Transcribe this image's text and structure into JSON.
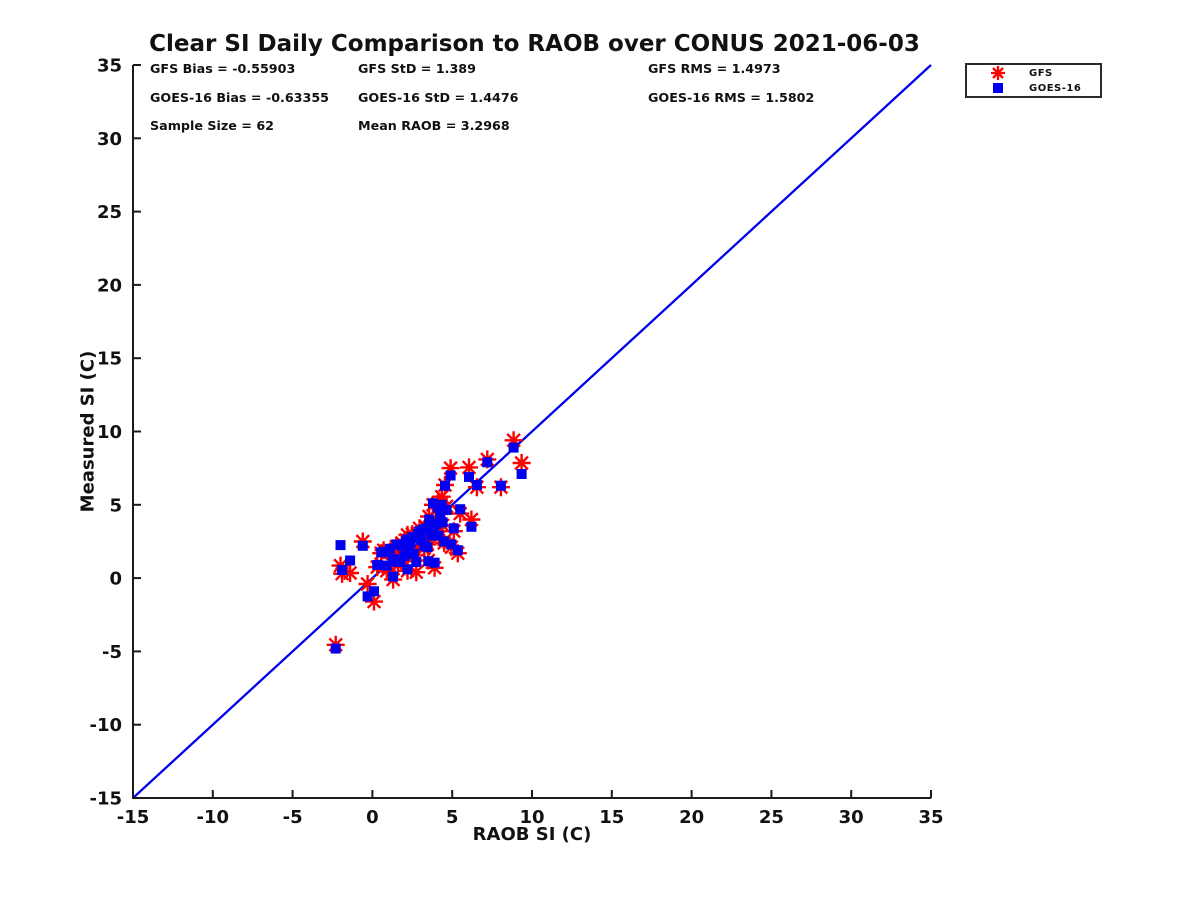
{
  "figure": {
    "background": "#ffffff",
    "text_color": "#111111"
  },
  "stats": {
    "rows": [
      [
        "GFS Bias = -0.55903",
        "GFS StD = 1.389",
        "GFS RMS = 1.4973"
      ],
      [
        "GOES-16 Bias = -0.63355",
        "GOES-16 StD = 1.4476",
        "GOES-16 RMS = 1.5802"
      ],
      [
        "Sample Size = 62",
        "Mean RAOB = 3.2968"
      ]
    ]
  },
  "chart_data": {
    "type": "scatter",
    "title": "Clear SI Daily Comparison to RAOB over CONUS 2021-06-03",
    "xlabel": "RAOB SI (C)",
    "ylabel": "Measured SI (C)",
    "xlim": [
      -15,
      35
    ],
    "ylim": [
      -15,
      35
    ],
    "xticks": [
      -15,
      -10,
      -5,
      0,
      5,
      10,
      15,
      20,
      25,
      30,
      35
    ],
    "yticks": [
      -15,
      -10,
      -5,
      0,
      5,
      10,
      15,
      20,
      25,
      30,
      35
    ],
    "grid": false,
    "legend_position": "top-right-outside",
    "sample_size": 62,
    "identity_line": {
      "x": [
        -15,
        35
      ],
      "y": [
        -15,
        35
      ],
      "color": "#0000ee",
      "width": 2.3
    },
    "x": [
      -2.3,
      -2.0,
      -1.9,
      -1.4,
      -0.6,
      -0.3,
      0.1,
      1.3,
      0.3,
      0.55,
      8.85,
      9.35,
      8.05,
      7.2,
      6.55,
      6.05,
      4.9,
      4.55,
      6.2,
      5.35,
      0.7,
      0.9,
      1.1,
      1.25,
      1.4,
      1.5,
      1.6,
      1.75,
      1.85,
      2.0,
      2.1,
      2.2,
      2.3,
      2.4,
      2.5,
      2.6,
      2.75,
      2.85,
      2.95,
      3.05,
      3.15,
      3.25,
      3.35,
      3.45,
      3.5,
      3.55,
      3.7,
      3.8,
      3.85,
      3.9,
      4.0,
      4.1,
      4.15,
      4.25,
      4.35,
      4.4,
      4.5,
      4.65,
      4.95,
      5.1,
      5.5,
      2.2
    ],
    "series": [
      {
        "name": "GFS",
        "marker": "asterisk",
        "color": "#ff0000",
        "values": [
          -4.55,
          0.85,
          0.3,
          0.35,
          2.5,
          -0.4,
          -1.6,
          -0.1,
          0.75,
          1.7,
          9.4,
          7.85,
          6.2,
          8.1,
          6.2,
          7.55,
          7.5,
          6.35,
          4.0,
          1.7,
          1.9,
          0.5,
          1.8,
          1.1,
          1.5,
          2.15,
          0.9,
          1.35,
          2.4,
          1.15,
          2.6,
          2.95,
          1.9,
          2.2,
          3.0,
          1.55,
          0.4,
          2.7,
          3.4,
          2.5,
          3.0,
          2.05,
          3.5,
          2.3,
          1.2,
          4.2,
          3.1,
          5.0,
          3.3,
          0.7,
          3.9,
          5.1,
          2.8,
          4.45,
          5.55,
          3.6,
          2.4,
          4.9,
          2.1,
          3.2,
          4.4,
          0.5
        ]
      },
      {
        "name": "GOES-16",
        "marker": "square",
        "color": "#0000ee",
        "values": [
          -4.8,
          2.25,
          0.55,
          1.2,
          2.2,
          -1.25,
          -0.9,
          0.1,
          0.9,
          1.75,
          8.9,
          7.1,
          6.3,
          7.9,
          6.35,
          6.9,
          7.0,
          6.3,
          3.5,
          1.9,
          1.8,
          0.85,
          2.0,
          1.3,
          1.2,
          2.3,
          1.1,
          1.25,
          2.2,
          1.5,
          2.5,
          2.65,
          2.05,
          2.4,
          2.8,
          1.65,
          1.1,
          3.0,
          3.2,
          2.6,
          3.3,
          2.2,
          3.4,
          2.1,
          1.15,
          4.0,
          2.9,
          5.1,
          3.5,
          1.05,
          3.7,
          4.8,
          2.9,
          4.3,
          5.0,
          3.8,
          2.5,
          4.65,
          2.3,
          3.4,
          4.7,
          0.6
        ]
      }
    ]
  }
}
